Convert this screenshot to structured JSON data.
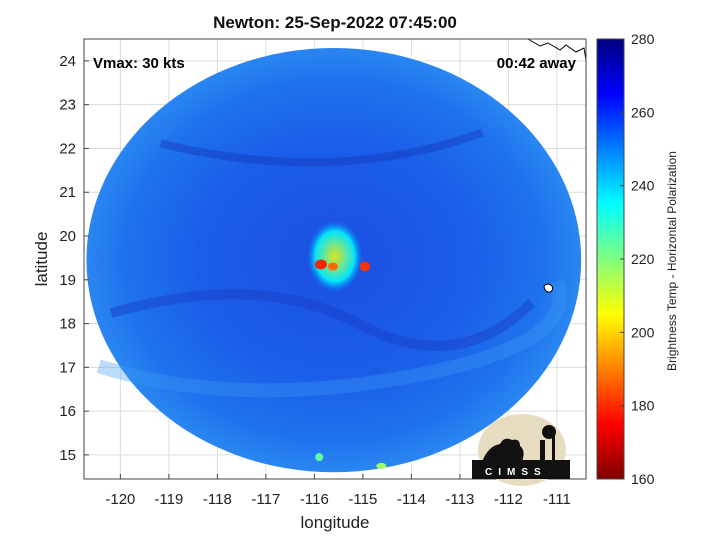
{
  "title": "Newton: 25-Sep-2022 07:45:00",
  "annotations": {
    "vmax": "Vmax: 30 kts",
    "away": "00:42 away"
  },
  "map": {
    "xlabel": "longitude",
    "ylabel": "latitude",
    "xlim": [
      -120.75,
      -110.4
    ],
    "ylim": [
      14.45,
      24.5
    ],
    "x_ticks": [
      -120,
      -119,
      -118,
      -117,
      -116,
      -115,
      -114,
      -113,
      -112,
      -111
    ],
    "x_tick_labels": [
      "-120",
      "-119",
      "-118",
      "-117",
      "-116",
      "-115",
      "-114",
      "-113",
      "-112",
      "-111"
    ],
    "y_ticks": [
      15,
      16,
      17,
      18,
      19,
      20,
      21,
      22,
      23,
      24
    ],
    "y_tick_labels": [
      "15",
      "16",
      "17",
      "18",
      "19",
      "20",
      "21",
      "22",
      "23",
      "24"
    ],
    "grid": true,
    "swath_center": [
      -115.6,
      19.45
    ],
    "swath_radius_deg": 5.1,
    "storm_center": [
      -115.7,
      19.35
    ]
  },
  "colorbar": {
    "label": "Brightness Temp - Horizontal Polarization",
    "min": 160,
    "max": 280,
    "ticks": [
      160,
      180,
      200,
      220,
      240,
      260,
      280
    ],
    "tick_labels": [
      "160",
      "180",
      "200",
      "220",
      "240",
      "260",
      "280"
    ],
    "colormap": [
      "#7f0000",
      "#ff0000",
      "#ff8000",
      "#ffff00",
      "#80ff80",
      "#00ffff",
      "#0080ff",
      "#0000ff",
      "#00007f"
    ]
  },
  "logo": {
    "text": "CIMSS"
  }
}
